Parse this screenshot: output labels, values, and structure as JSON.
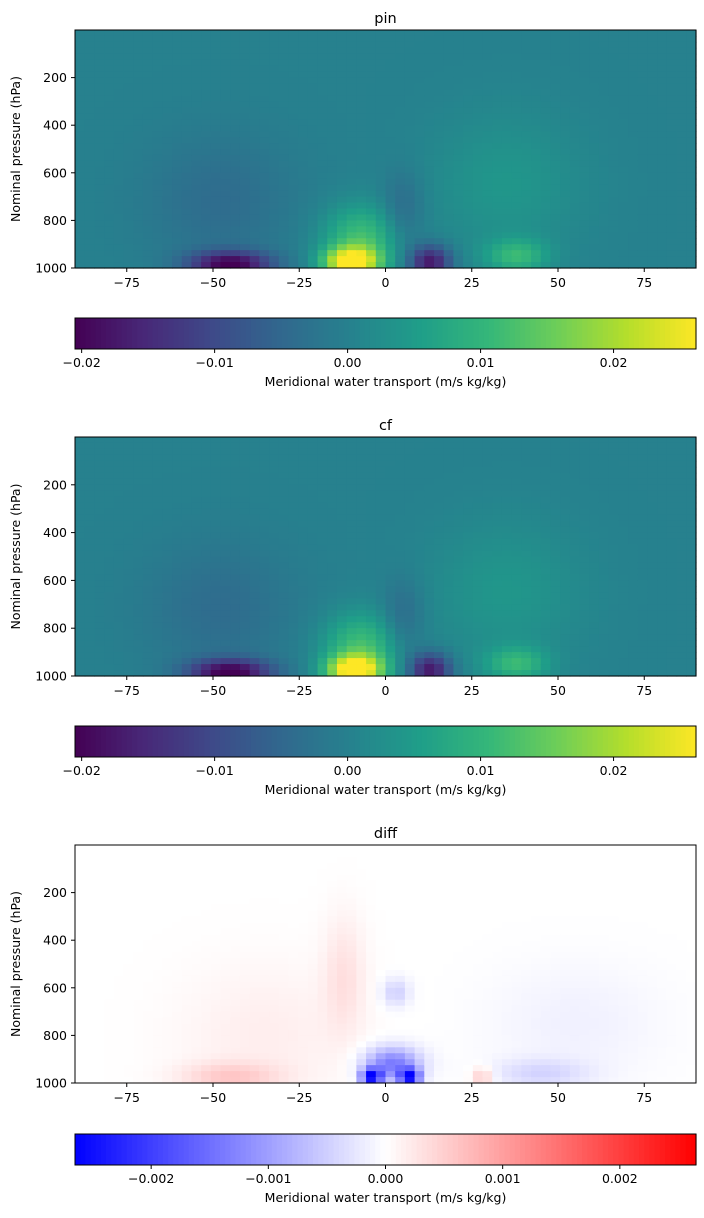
{
  "chart_data": [
    {
      "type": "heatmap",
      "title": "pin",
      "xlabel": "",
      "ylabel": "Nominal pressure (hPa)",
      "xlim": [
        -90,
        90
      ],
      "ylim": [
        1000,
        0
      ],
      "x_ticks": [
        -75,
        -50,
        -25,
        0,
        25,
        50,
        75
      ],
      "y_ticks": [
        200,
        400,
        600,
        800,
        1000
      ],
      "colormap": "viridis",
      "color_range": [
        -0.0205,
        0.0262
      ],
      "colorbar": {
        "label": "Meridional water transport (m/s kg/kg)",
        "ticks": [
          -0.02,
          -0.01,
          0.0,
          0.01,
          0.02
        ],
        "tick_labels": [
          "−0.02",
          "−0.01",
          "0.00",
          "0.01",
          "0.02"
        ]
      },
      "features": [
        {
          "lat": -45,
          "pressure": 985,
          "value": -0.02,
          "lat_width": 12,
          "p_depth": 55
        },
        {
          "lat": -48,
          "pressure": 720,
          "value": -0.004,
          "lat_width": 22,
          "p_depth": 280
        },
        {
          "lat": -10,
          "pressure": 975,
          "value": 0.026,
          "lat_width": 8,
          "p_depth": 60
        },
        {
          "lat": -7,
          "pressure": 880,
          "value": 0.012,
          "lat_width": 11,
          "p_depth": 140
        },
        {
          "lat": 13,
          "pressure": 975,
          "value": -0.018,
          "lat_width": 6,
          "p_depth": 70
        },
        {
          "lat": 5,
          "pressure": 760,
          "value": -0.005,
          "lat_width": 6,
          "p_depth": 160
        },
        {
          "lat": 38,
          "pressure": 950,
          "value": 0.01,
          "lat_width": 9,
          "p_depth": 70
        },
        {
          "lat": 35,
          "pressure": 650,
          "value": 0.004,
          "lat_width": 22,
          "p_depth": 300
        }
      ]
    },
    {
      "type": "heatmap",
      "title": "cf",
      "xlabel": "",
      "ylabel": "Nominal pressure (hPa)",
      "xlim": [
        -90,
        90
      ],
      "ylim": [
        1000,
        0
      ],
      "x_ticks": [
        -75,
        -50,
        -25,
        0,
        25,
        50,
        75
      ],
      "y_ticks": [
        200,
        400,
        600,
        800,
        1000
      ],
      "colormap": "viridis",
      "color_range": [
        -0.0205,
        0.0262
      ],
      "colorbar": {
        "label": "Meridional water transport (m/s kg/kg)",
        "ticks": [
          -0.02,
          -0.01,
          0.0,
          0.01,
          0.02
        ],
        "tick_labels": [
          "−0.02",
          "−0.01",
          "0.00",
          "0.01",
          "0.02"
        ]
      },
      "features": [
        {
          "lat": -45,
          "pressure": 985,
          "value": -0.0205,
          "lat_width": 12,
          "p_depth": 55
        },
        {
          "lat": -48,
          "pressure": 720,
          "value": -0.004,
          "lat_width": 22,
          "p_depth": 280
        },
        {
          "lat": -9,
          "pressure": 975,
          "value": 0.0262,
          "lat_width": 8,
          "p_depth": 60
        },
        {
          "lat": -7,
          "pressure": 880,
          "value": 0.012,
          "lat_width": 11,
          "p_depth": 140
        },
        {
          "lat": 13,
          "pressure": 975,
          "value": -0.018,
          "lat_width": 6,
          "p_depth": 70
        },
        {
          "lat": 5,
          "pressure": 760,
          "value": -0.005,
          "lat_width": 6,
          "p_depth": 160
        },
        {
          "lat": 38,
          "pressure": 950,
          "value": 0.01,
          "lat_width": 9,
          "p_depth": 70
        },
        {
          "lat": 35,
          "pressure": 650,
          "value": 0.004,
          "lat_width": 22,
          "p_depth": 300
        }
      ]
    },
    {
      "type": "heatmap",
      "title": "diff",
      "xlabel": "",
      "ylabel": "Nominal pressure (hPa)",
      "xlim": [
        -90,
        90
      ],
      "ylim": [
        1000,
        0
      ],
      "x_ticks": [
        -75,
        -50,
        -25,
        0,
        25,
        50,
        75
      ],
      "y_ticks": [
        200,
        400,
        600,
        800,
        1000
      ],
      "colormap": "bwr",
      "color_range": [
        -0.00265,
        0.00265
      ],
      "colorbar": {
        "label": "Meridional water transport (m/s kg/kg)",
        "ticks": [
          -0.002,
          -0.001,
          0.0,
          0.001,
          0.002
        ],
        "tick_labels": [
          "−0.002",
          "−0.001",
          "0.000",
          "0.001",
          "0.002"
        ]
      },
      "features": [
        {
          "lat": -4,
          "pressure": 975,
          "value": -0.0025,
          "lat_width": 3,
          "p_depth": 35
        },
        {
          "lat": 7,
          "pressure": 975,
          "value": -0.0024,
          "lat_width": 3,
          "p_depth": 35
        },
        {
          "lat": 2,
          "pressure": 920,
          "value": -0.0014,
          "lat_width": 8,
          "p_depth": 70
        },
        {
          "lat": 3,
          "pressure": 620,
          "value": -0.0005,
          "lat_width": 4,
          "p_depth": 60
        },
        {
          "lat": 45,
          "pressure": 960,
          "value": -0.0004,
          "lat_width": 14,
          "p_depth": 60
        },
        {
          "lat": 55,
          "pressure": 750,
          "value": -0.00015,
          "lat_width": 25,
          "p_depth": 250
        },
        {
          "lat": -45,
          "pressure": 975,
          "value": 0.0005,
          "lat_width": 14,
          "p_depth": 60
        },
        {
          "lat": -12,
          "pressure": 550,
          "value": 0.0003,
          "lat_width": 6,
          "p_depth": 250
        },
        {
          "lat": -35,
          "pressure": 800,
          "value": 0.00018,
          "lat_width": 25,
          "p_depth": 300
        },
        {
          "lat": 28,
          "pressure": 975,
          "value": 0.0006,
          "lat_width": 3,
          "p_depth": 40
        }
      ]
    }
  ]
}
